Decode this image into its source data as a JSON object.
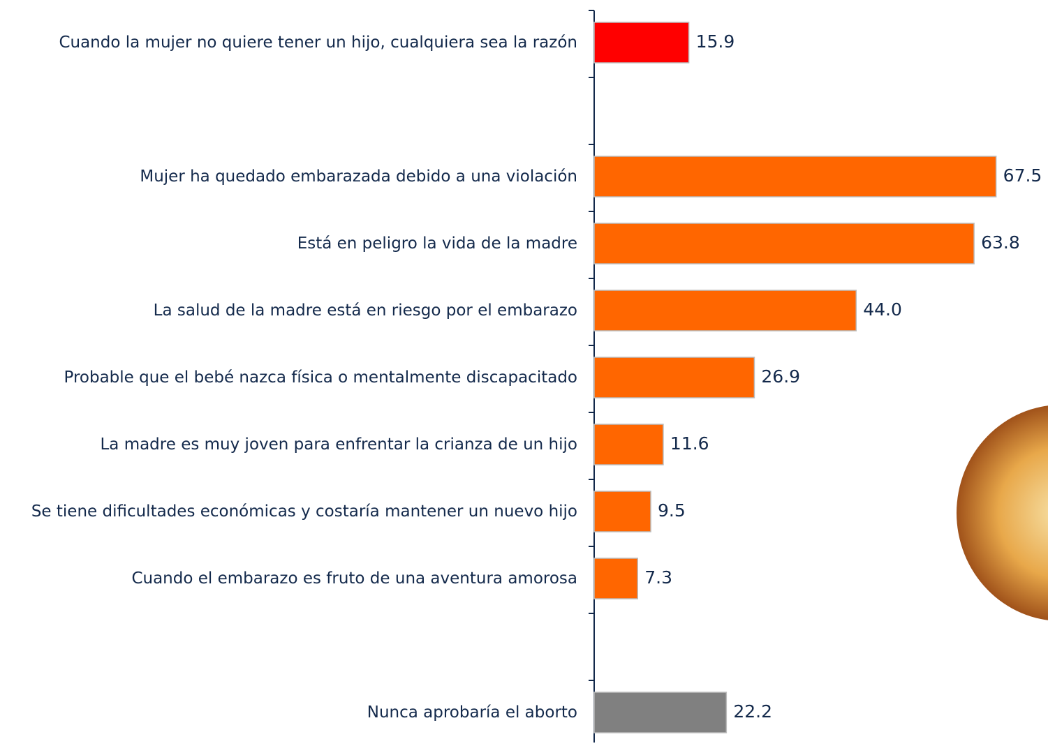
{
  "chart_data": {
    "type": "bar",
    "orientation": "horizontal",
    "categories": [
      "Cuando la mujer no quiere tener un hijo, cualquiera sea la razón",
      null,
      "Mujer ha quedado embarazada debido a una violación",
      "Está en peligro la vida de la madre",
      "La salud de la madre está en riesgo por el embarazo",
      "Probable que el bebé nazca física o mentalmente discapacitado",
      "La madre es muy joven para enfrentar la crianza de un hijo",
      "Se tiene dificultades económicas y costaría mantener un nuevo hijo",
      "Cuando el embarazo es fruto de una aventura amorosa",
      null,
      "Nunca aprobaría el aborto"
    ],
    "values": [
      15.9,
      null,
      67.5,
      63.8,
      44.0,
      26.9,
      11.6,
      9.5,
      7.3,
      null,
      22.2
    ],
    "value_labels": [
      "15.9",
      null,
      "67.5",
      "63.8",
      "44.0",
      "26.9",
      "11.6",
      "9.5",
      "7.3",
      null,
      "22.2"
    ],
    "colors": [
      "#ff0000",
      null,
      "#ff6600",
      "#ff6600",
      "#ff6600",
      "#ff6600",
      "#ff6600",
      "#ff6600",
      "#ff6600",
      null,
      "#808080"
    ],
    "xlim": [
      0,
      70
    ]
  }
}
